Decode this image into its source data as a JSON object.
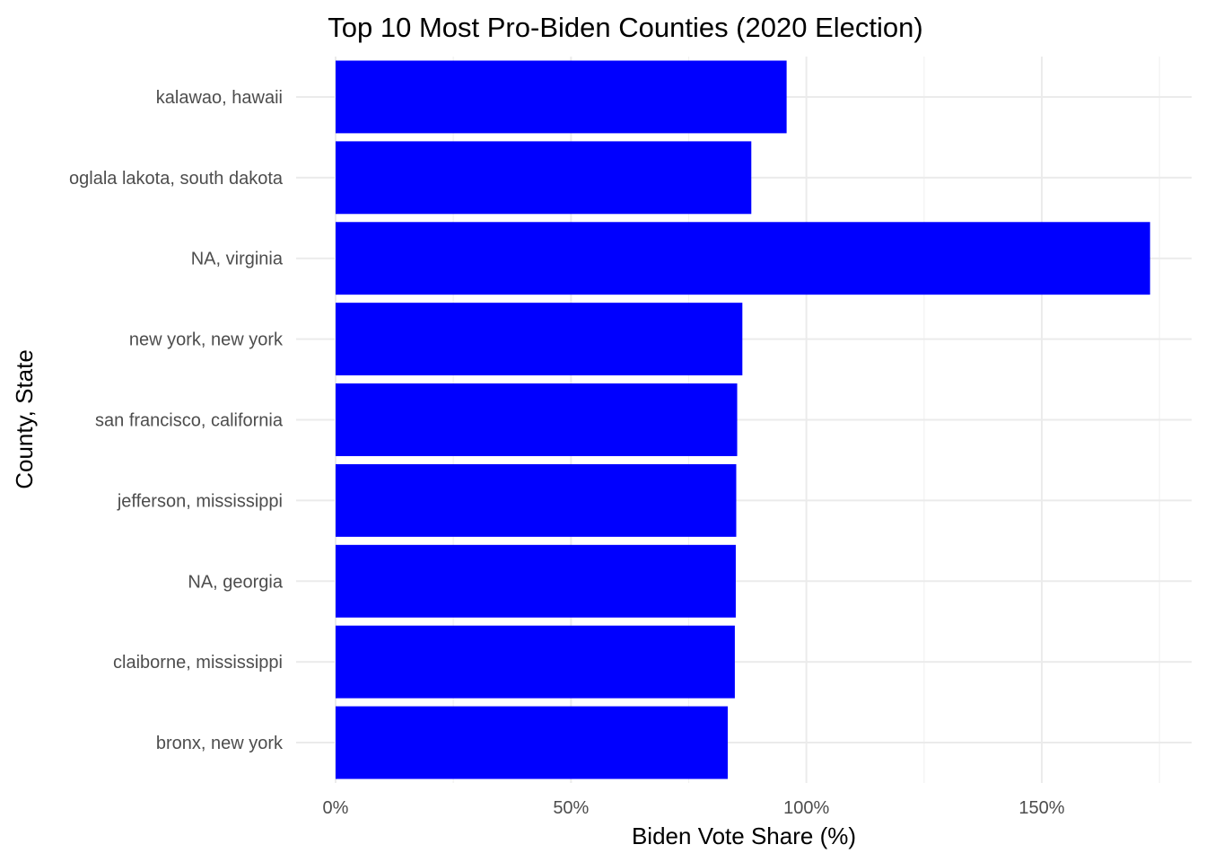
{
  "chart_data": {
    "type": "bar",
    "orientation": "horizontal",
    "title": "Top 10 Most Pro-Biden Counties (2020 Election)",
    "xlabel": "Biden Vote Share (%)",
    "ylabel": "County, State",
    "categories": [
      "kalawao, hawaii",
      "oglala lakota, south dakota",
      "NA, virginia",
      "new york, new york",
      "san francisco, california",
      "jefferson, mississippi",
      "NA, georgia",
      "claiborne, mississippi",
      "bronx, new york"
    ],
    "values": [
      95.8,
      88.3,
      173.0,
      86.4,
      85.3,
      85.1,
      85.0,
      84.8,
      83.3
    ],
    "xlim": [
      -8.5,
      182
    ],
    "xticks": [
      0,
      50,
      100,
      150
    ],
    "xtick_labels": [
      "0%",
      "50%",
      "100%",
      "150%"
    ],
    "bar_color": "#0000FF",
    "grid": true,
    "legend": "none"
  }
}
